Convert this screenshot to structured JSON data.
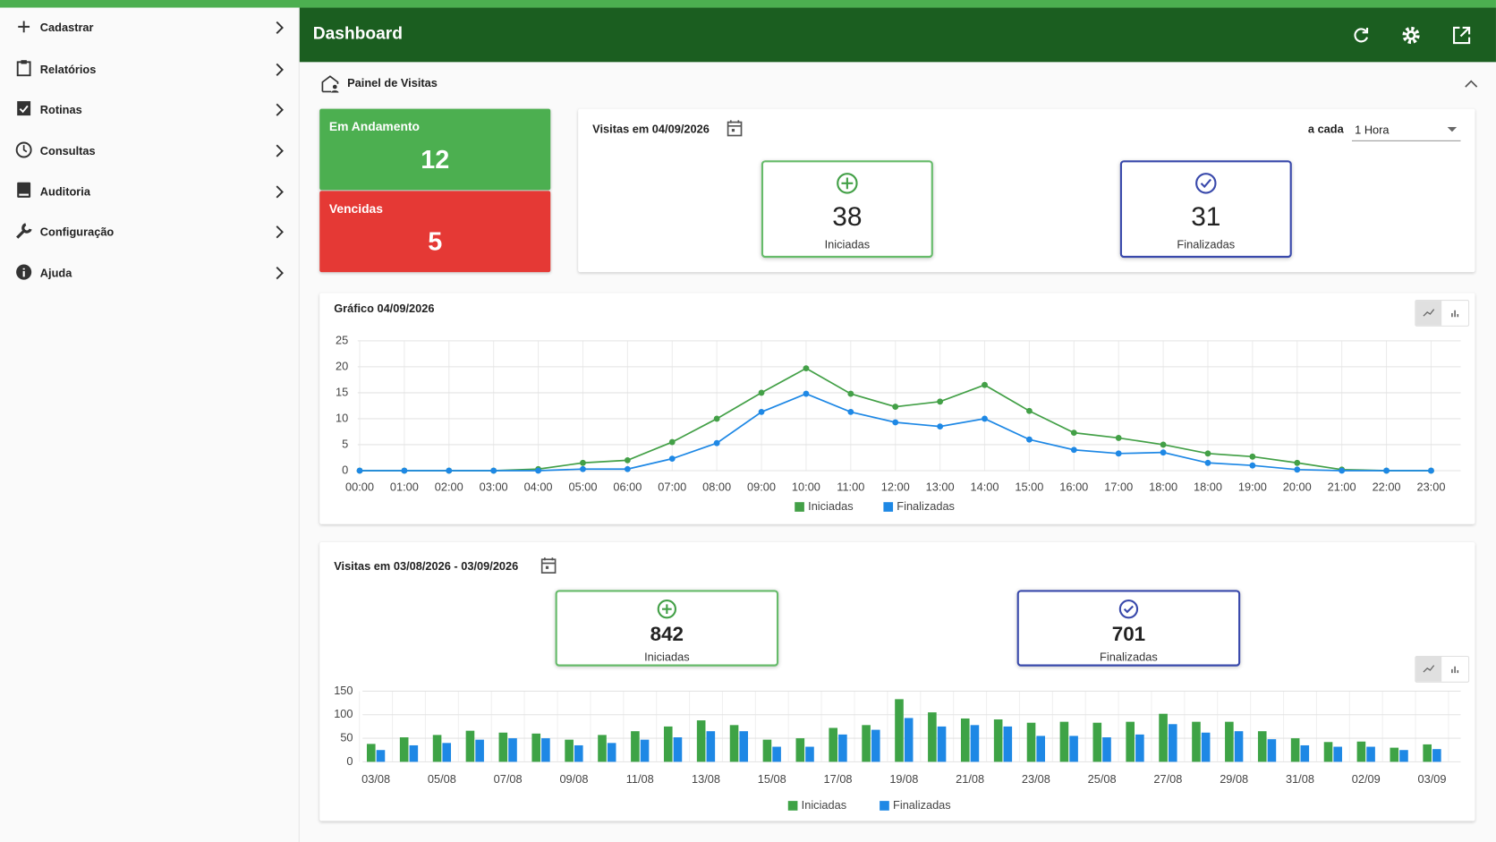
{
  "sidebar": {
    "items": [
      "Cadastrar",
      "Relatórios",
      "Rotinas",
      "Consultas",
      "Auditoria",
      "Configuração",
      "Ajuda"
    ]
  },
  "header": {
    "title": "Dashboard"
  },
  "panel": {
    "title": "Painel de Visitas",
    "status": [
      {
        "label": "Em Andamento",
        "value": 12
      },
      {
        "label": "Vencidas",
        "value": 5
      }
    ],
    "daily": {
      "title": "Visitas em 04/09/2026",
      "interval_label": "a cada",
      "interval": "1 Hora",
      "started": {
        "value": 38,
        "label": "Iniciadas"
      },
      "finished": {
        "value": 31,
        "label": "Finalizadas"
      }
    },
    "range": {
      "title": "Visitas em 03/08/2026 - 03/09/2026",
      "started": {
        "value": 842,
        "label": "Iniciadas"
      },
      "finished": {
        "value": 701,
        "label": "Finalizadas"
      }
    }
  },
  "chart_data": [
    {
      "type": "line",
      "title": "Gráfico 04/09/2026",
      "grid": true,
      "legend": "bottom",
      "categories": [
        "00:00",
        "01:00",
        "02:00",
        "03:00",
        "04:00",
        "05:00",
        "06:00",
        "07:00",
        "08:00",
        "09:00",
        "10:00",
        "11:00",
        "12:00",
        "13:00",
        "14:00",
        "15:00",
        "16:00",
        "17:00",
        "18:00",
        "18:00",
        "19:00",
        "20:00",
        "21:00",
        "22:00",
        "23:00"
      ],
      "ylim": [
        0,
        25
      ],
      "yticks": [
        0,
        5,
        10,
        15,
        20,
        25
      ],
      "series": [
        {
          "name": "Iniciadas",
          "color": "#43a047",
          "values": [
            0,
            0,
            0,
            0,
            0.3,
            1.5,
            2,
            5.5,
            10,
            15,
            19.7,
            14.8,
            12.3,
            13.3,
            16.5,
            11.5,
            7.3,
            6.3,
            5,
            3.3,
            2.7,
            1.5,
            0.2,
            0,
            0
          ]
        },
        {
          "name": "Finalizadas",
          "color": "#1e88e5",
          "values": [
            0,
            0,
            0,
            0,
            0,
            0.3,
            0.3,
            2.3,
            5.3,
            11.3,
            14.8,
            11.3,
            9.3,
            8.5,
            10,
            6,
            4,
            3.3,
            3.5,
            1.5,
            1,
            0.2,
            0,
            0,
            0
          ]
        }
      ]
    },
    {
      "type": "bar",
      "grid": true,
      "legend": "bottom",
      "categories": [
        "03/08",
        null,
        "05/08",
        null,
        "07/08",
        null,
        "09/08",
        null,
        "11/08",
        null,
        "13/08",
        null,
        "15/08",
        null,
        "17/08",
        null,
        "19/08",
        null,
        "21/08",
        null,
        "23/08",
        null,
        "25/08",
        null,
        "27/08",
        null,
        "29/08",
        null,
        "31/08",
        null,
        "02/09",
        null,
        "03/09"
      ],
      "ylim": [
        0,
        150
      ],
      "yticks": [
        0,
        50,
        100,
        150
      ],
      "series": [
        {
          "name": "Iniciadas",
          "color": "#3ea346",
          "values": [
            38,
            52,
            57,
            66,
            62,
            60,
            47,
            57,
            65,
            75,
            88,
            78,
            47,
            50,
            72,
            78,
            133,
            105,
            92,
            90,
            83,
            85,
            83,
            85,
            102,
            85,
            85,
            65,
            50,
            42,
            43,
            30,
            37
          ]
        },
        {
          "name": "Finalizadas",
          "color": "#1e88e5",
          "values": [
            25,
            35,
            40,
            47,
            50,
            50,
            35,
            40,
            47,
            52,
            65,
            65,
            32,
            32,
            58,
            68,
            93,
            75,
            78,
            75,
            55,
            55,
            52,
            58,
            80,
            62,
            65,
            48,
            35,
            32,
            32,
            25,
            27
          ]
        }
      ]
    }
  ]
}
